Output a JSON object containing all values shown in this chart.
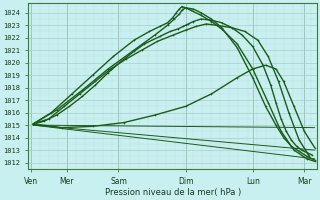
{
  "bg_color": "#c8f0f0",
  "grid_major_color": "#aacccc",
  "grid_minor_color": "#c0dddd",
  "line_color": "#1a5c1a",
  "xlabel": "Pression niveau de la mer( hPa )",
  "ylabel_values": [
    1012,
    1013,
    1014,
    1015,
    1016,
    1017,
    1018,
    1019,
    1020,
    1021,
    1022,
    1023,
    1024
  ],
  "xlabels": [
    "Ven",
    "Mer",
    "Sam",
    "Dim",
    "Lun",
    "Mar"
  ],
  "xtick_positions": [
    0,
    0.7,
    1.7,
    3.0,
    4.3,
    5.3
  ],
  "ylim": [
    1011.5,
    1024.8
  ],
  "xlim": [
    -0.05,
    5.55
  ],
  "lines": [
    {
      "x": [
        0.05,
        0.25,
        0.5,
        0.75,
        1.0,
        1.25,
        1.5,
        1.75,
        2.0,
        2.2,
        2.5,
        2.7,
        2.85,
        2.95,
        3.0,
        3.05,
        3.15,
        3.3,
        3.5,
        3.7,
        3.9,
        4.1,
        4.3,
        4.5,
        4.65,
        4.75,
        4.85,
        4.95,
        5.05,
        5.15,
        5.25,
        5.35,
        5.45
      ],
      "y": [
        1015.1,
        1015.3,
        1015.8,
        1016.5,
        1017.3,
        1018.2,
        1019.2,
        1020.1,
        1020.9,
        1021.5,
        1022.1,
        1022.5,
        1022.7,
        1022.9,
        1023.0,
        1023.1,
        1023.3,
        1023.5,
        1023.4,
        1023.2,
        1022.8,
        1022.2,
        1021.3,
        1019.8,
        1018.2,
        1016.8,
        1015.5,
        1014.5,
        1013.8,
        1013.3,
        1013.0,
        1012.8,
        1012.6
      ],
      "marker": ".",
      "markersize": 1.8,
      "linewidth": 1.0
    },
    {
      "x": [
        0.05,
        0.35,
        0.65,
        0.95,
        1.25,
        1.55,
        1.85,
        2.15,
        2.45,
        2.75,
        3.0,
        3.2,
        3.4,
        3.6,
        3.9,
        4.15,
        4.4,
        4.6,
        4.8,
        5.0,
        5.2,
        5.4
      ],
      "y": [
        1015.1,
        1015.5,
        1016.5,
        1017.5,
        1018.5,
        1019.5,
        1020.3,
        1021.0,
        1021.7,
        1022.2,
        1022.6,
        1022.9,
        1023.1,
        1023.0,
        1022.8,
        1022.5,
        1021.8,
        1020.5,
        1018.5,
        1016.0,
        1013.8,
        1012.5
      ],
      "marker": ".",
      "markersize": 1.8,
      "linewidth": 1.0
    },
    {
      "x": [
        0.05,
        0.4,
        0.8,
        1.2,
        1.6,
        2.0,
        2.3,
        2.5,
        2.65,
        2.75,
        2.82,
        2.88,
        2.93,
        3.0,
        3.1,
        3.3,
        3.5,
        3.7,
        4.0,
        4.3,
        4.6,
        4.85,
        5.1,
        5.35,
        5.5
      ],
      "y": [
        1015.1,
        1016.0,
        1017.5,
        1019.0,
        1020.5,
        1021.8,
        1022.5,
        1022.9,
        1023.2,
        1023.6,
        1024.0,
        1024.3,
        1024.5,
        1024.4,
        1024.2,
        1023.8,
        1023.3,
        1022.7,
        1021.5,
        1019.5,
        1016.8,
        1014.5,
        1013.0,
        1012.3,
        1012.1
      ],
      "marker": ".",
      "markersize": 1.8,
      "linewidth": 1.0
    },
    {
      "x": [
        0.05,
        0.5,
        1.0,
        1.5,
        2.0,
        2.4,
        2.65,
        2.78,
        2.88,
        2.93,
        3.0,
        3.15,
        3.3,
        3.5,
        3.7,
        4.0,
        4.3,
        4.55,
        4.75,
        4.9,
        5.05,
        5.2,
        5.35,
        5.5
      ],
      "y": [
        1015.1,
        1016.2,
        1017.8,
        1019.5,
        1021.0,
        1022.2,
        1023.0,
        1023.5,
        1023.9,
        1024.2,
        1024.4,
        1024.3,
        1024.0,
        1023.5,
        1022.8,
        1021.2,
        1018.8,
        1016.5,
        1015.0,
        1014.0,
        1013.3,
        1012.9,
        1012.5,
        1012.2
      ],
      "marker": ".",
      "markersize": 1.8,
      "linewidth": 1.0
    },
    {
      "x": [
        0.05,
        0.6,
        1.2,
        1.8,
        2.4,
        3.0,
        3.5,
        4.0,
        4.3,
        4.55,
        4.75,
        4.9,
        5.1,
        5.3,
        5.5
      ],
      "y": [
        1015.1,
        1014.8,
        1014.9,
        1015.2,
        1015.8,
        1016.5,
        1017.5,
        1018.8,
        1019.5,
        1019.8,
        1019.5,
        1018.5,
        1016.5,
        1014.5,
        1013.2
      ],
      "marker": ".",
      "markersize": 1.8,
      "linewidth": 1.0
    },
    {
      "x": [
        0.05,
        5.5
      ],
      "y": [
        1015.0,
        1014.8
      ],
      "marker": null,
      "markersize": 0,
      "linewidth": 0.7
    },
    {
      "x": [
        0.05,
        5.5
      ],
      "y": [
        1015.0,
        1013.0
      ],
      "marker": null,
      "markersize": 0,
      "linewidth": 0.7
    },
    {
      "x": [
        0.05,
        5.5
      ],
      "y": [
        1015.0,
        1012.3
      ],
      "marker": null,
      "markersize": 0,
      "linewidth": 0.7
    }
  ]
}
